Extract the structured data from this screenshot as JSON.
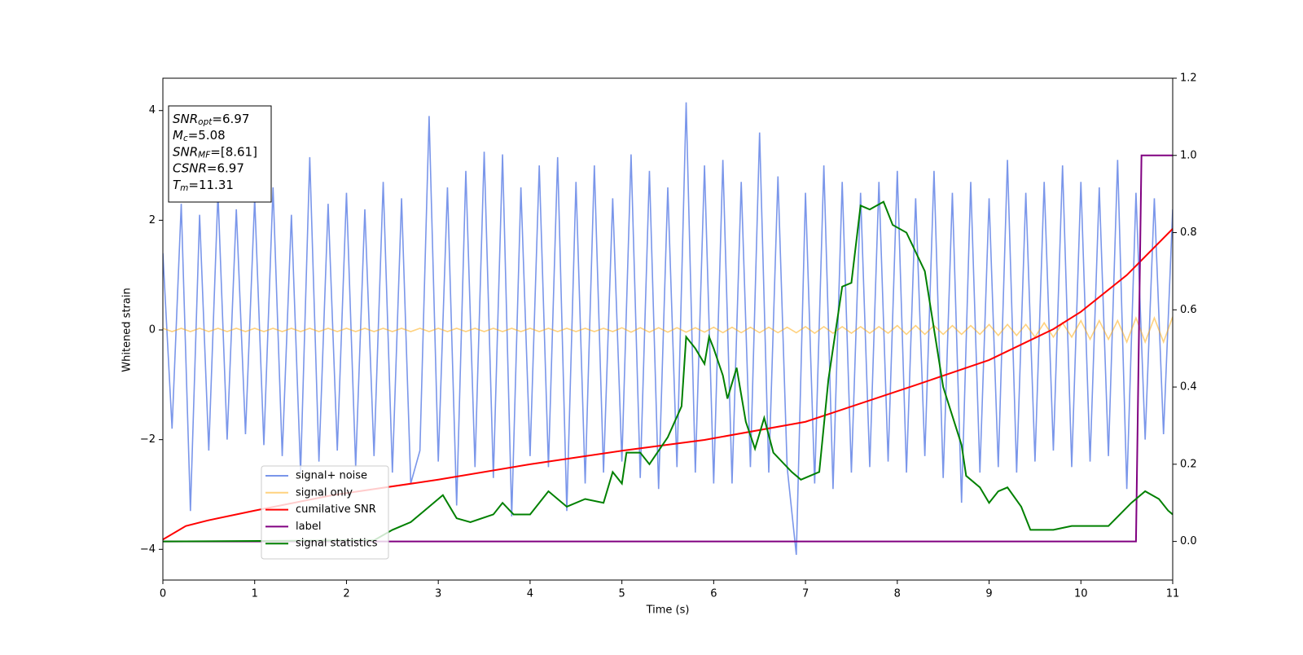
{
  "chart_data": {
    "type": "line",
    "xlabel": "Time (s)",
    "ylabel": "Whitened strain",
    "xlim": [
      0,
      11
    ],
    "xticks": [
      0,
      1,
      2,
      3,
      4,
      5,
      6,
      7,
      8,
      9,
      10,
      11
    ],
    "ylim": [
      -4.56,
      4.59
    ],
    "yticks": [
      {
        "value": -4,
        "label": "−4"
      },
      {
        "value": -2,
        "label": "−2"
      },
      0,
      2,
      4
    ],
    "y2lim": [
      -0.1,
      1.2
    ],
    "y2ticks": [
      {
        "value": 0,
        "label": "0.0"
      },
      {
        "value": 0.2,
        "label": "0.2"
      },
      {
        "value": 0.4,
        "label": "0.4"
      },
      {
        "value": 0.6,
        "label": "0.6"
      },
      {
        "value": 0.8,
        "label": "0.8"
      },
      {
        "value": 1.0,
        "label": "1.0"
      },
      {
        "value": 1.2,
        "label": "1.2"
      }
    ],
    "legend": "lower left",
    "annotations": [
      {
        "name": "SNR",
        "sub": "opt",
        "text": "=6.97"
      },
      {
        "name": "M",
        "sub": "c",
        "text": "=5.08"
      },
      {
        "name": "SNR",
        "sub": "MF",
        "text": "=[8.61]"
      },
      {
        "name": "CSNR",
        "sub": "",
        "text": "=6.97"
      },
      {
        "name": "T",
        "sub": "m",
        "text": "=11.31"
      }
    ],
    "x": [
      0,
      0.1,
      0.2,
      0.3,
      0.4,
      0.5,
      0.6,
      0.7,
      0.8,
      0.9,
      1,
      1.1,
      1.2,
      1.3,
      1.4,
      1.5,
      1.6,
      1.7,
      1.8,
      1.9,
      2,
      2.1,
      2.2,
      2.3,
      2.4,
      2.5,
      2.6,
      2.7,
      2.8,
      2.9,
      3,
      3.1,
      3.2,
      3.3,
      3.4,
      3.5,
      3.6,
      3.7,
      3.8,
      3.9,
      4,
      4.1,
      4.2,
      4.3,
      4.4,
      4.5,
      4.6,
      4.7,
      4.8,
      4.9,
      5,
      5.1,
      5.2,
      5.3,
      5.4,
      5.5,
      5.6,
      5.7,
      5.8,
      5.9,
      6,
      6.1,
      6.2,
      6.3,
      6.4,
      6.5,
      6.6,
      6.7,
      6.8,
      6.9,
      7,
      7.1,
      7.2,
      7.3,
      7.4,
      7.5,
      7.6,
      7.7,
      7.8,
      7.9,
      8,
      8.1,
      8.2,
      8.3,
      8.4,
      8.5,
      8.6,
      8.7,
      8.8,
      8.9,
      9,
      9.1,
      9.2,
      9.3,
      9.4,
      9.5,
      9.6,
      9.7,
      9.8,
      9.9,
      10,
      10.1,
      10.2,
      10.3,
      10.4,
      10.5,
      10.6,
      10.7,
      10.8,
      10.9,
      11
    ],
    "series": [
      {
        "name": "signal+ noise",
        "color": "#4169e1",
        "opacity": 0.7,
        "axis": "y",
        "values": [
          1.4,
          -1.8,
          2.3,
          -3.3,
          2.1,
          -2.2,
          2.5,
          -2.0,
          2.2,
          -1.9,
          2.4,
          -2.1,
          2.6,
          -2.3,
          2.1,
          -2.6,
          3.15,
          -2.4,
          2.3,
          -2.2,
          2.5,
          -2.5,
          2.2,
          -2.3,
          2.7,
          -2.6,
          2.4,
          -2.8,
          -2.2,
          3.9,
          -2.4,
          2.6,
          -3.2,
          2.9,
          -2.5,
          3.25,
          -2.7,
          3.2,
          -3.4,
          2.6,
          -2.3,
          3.0,
          -2.5,
          3.15,
          -3.3,
          2.7,
          -2.8,
          3.0,
          -2.6,
          2.4,
          -2.4,
          3.2,
          -2.7,
          2.9,
          -2.9,
          2.6,
          -2.5,
          4.15,
          -2.6,
          3.0,
          -2.8,
          3.1,
          -2.8,
          2.7,
          -2.5,
          3.6,
          -2.6,
          2.8,
          -2.5,
          -4.1,
          2.5,
          -2.8,
          3.0,
          -2.9,
          2.7,
          -2.6,
          2.5,
          -2.5,
          2.7,
          -2.4,
          2.9,
          -2.6,
          2.4,
          -2.3,
          2.9,
          -2.7,
          2.5,
          -3.15,
          2.7,
          -2.6,
          2.4,
          -2.5,
          3.1,
          -2.6,
          2.5,
          -2.4,
          2.7,
          -2.2,
          3.0,
          -2.5,
          2.7,
          -2.4,
          2.6,
          -2.3,
          3.1,
          -2.9,
          2.5,
          -2.0,
          2.4,
          -1.9,
          2.2
        ]
      },
      {
        "name": "signal only",
        "color": "orange",
        "opacity": 0.5,
        "axis": "y",
        "values": [
          0.03,
          -0.03,
          0.03,
          -0.03,
          0.03,
          -0.03,
          0.03,
          -0.03,
          0.03,
          -0.03,
          0.03,
          -0.03,
          0.03,
          -0.03,
          0.03,
          -0.03,
          0.03,
          -0.03,
          0.03,
          -0.03,
          0.03,
          -0.03,
          0.03,
          -0.03,
          0.03,
          -0.03,
          0.03,
          -0.03,
          0.03,
          -0.03,
          0.03,
          -0.03,
          0.03,
          -0.03,
          0.03,
          -0.03,
          0.03,
          -0.03,
          0.03,
          -0.03,
          0.03,
          -0.03,
          0.03,
          -0.03,
          0.03,
          -0.03,
          0.03,
          -0.03,
          0.03,
          -0.03,
          0.04,
          -0.04,
          0.04,
          -0.04,
          0.04,
          -0.04,
          0.04,
          -0.04,
          0.04,
          -0.04,
          0.05,
          -0.05,
          0.05,
          -0.05,
          0.05,
          -0.05,
          0.05,
          -0.05,
          0.05,
          -0.05,
          0.06,
          -0.06,
          0.06,
          -0.06,
          0.06,
          -0.06,
          0.06,
          -0.06,
          0.06,
          -0.06,
          0.08,
          -0.08,
          0.08,
          -0.08,
          0.08,
          -0.08,
          0.08,
          -0.08,
          0.08,
          -0.08,
          0.1,
          -0.1,
          0.1,
          -0.1,
          0.1,
          -0.13,
          0.13,
          -0.13,
          0.13,
          -0.13,
          0.17,
          -0.17,
          0.17,
          -0.17,
          0.17,
          -0.22,
          0.22,
          -0.22,
          0.22,
          -0.22,
          0.24
        ]
      },
      {
        "name": "cumilative SNR",
        "color": "#ff0000",
        "opacity": 1,
        "axis": "y2",
        "x": [
          0,
          0.25,
          0.5,
          1,
          1.85,
          3,
          4,
          5,
          5.9,
          7,
          8.2,
          9,
          9.7,
          10,
          10.5,
          11
        ],
        "values": [
          0.005,
          0.04,
          0.055,
          0.08,
          0.12,
          0.16,
          0.2,
          0.235,
          0.263,
          0.31,
          0.405,
          0.47,
          0.55,
          0.595,
          0.69,
          0.81
        ]
      },
      {
        "name": "label",
        "color": "purple",
        "opacity": 1,
        "axis": "y2",
        "x": [
          0,
          10.6,
          10.66,
          11
        ],
        "values": [
          0,
          0,
          1,
          1
        ]
      },
      {
        "name": "signal statistics",
        "color": "green",
        "opacity": 1,
        "axis": "y2",
        "x": [
          0,
          2.3,
          2.5,
          2.7,
          2.85,
          3.0,
          3.05,
          3.2,
          3.35,
          3.6,
          3.7,
          3.82,
          4.0,
          4.2,
          4.4,
          4.6,
          4.8,
          4.9,
          5.0,
          5.05,
          5.2,
          5.3,
          5.5,
          5.65,
          5.7,
          5.8,
          5.9,
          5.95,
          6.0,
          6.1,
          6.15,
          6.25,
          6.35,
          6.45,
          6.55,
          6.65,
          6.85,
          6.95,
          7.15,
          7.25,
          7.4,
          7.5,
          7.6,
          7.7,
          7.85,
          7.95,
          8.1,
          8.3,
          8.5,
          8.7,
          8.75,
          8.9,
          9.0,
          9.1,
          9.2,
          9.35,
          9.45,
          9.7,
          9.9,
          10.3,
          10.55,
          10.7,
          10.85,
          10.95,
          11.0
        ],
        "values": [
          0,
          0.003,
          0.03,
          0.05,
          0.08,
          0.11,
          0.12,
          0.06,
          0.05,
          0.07,
          0.1,
          0.07,
          0.07,
          0.13,
          0.09,
          0.11,
          0.1,
          0.18,
          0.15,
          0.23,
          0.23,
          0.2,
          0.27,
          0.35,
          0.53,
          0.5,
          0.46,
          0.53,
          0.5,
          0.43,
          0.37,
          0.45,
          0.31,
          0.24,
          0.32,
          0.23,
          0.18,
          0.16,
          0.18,
          0.42,
          0.66,
          0.67,
          0.87,
          0.86,
          0.88,
          0.82,
          0.8,
          0.7,
          0.4,
          0.25,
          0.17,
          0.14,
          0.1,
          0.13,
          0.14,
          0.09,
          0.03,
          0.03,
          0.04,
          0.04,
          0.1,
          0.13,
          0.11,
          0.08,
          0.07
        ]
      }
    ]
  }
}
